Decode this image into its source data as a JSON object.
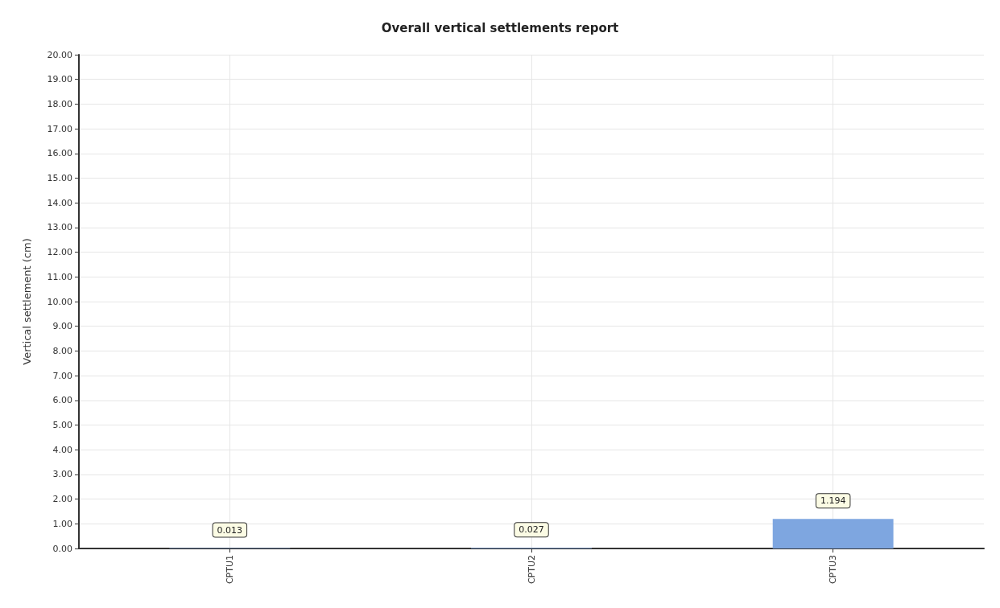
{
  "chart_data": {
    "type": "bar",
    "title": "Overall vertical settlements report",
    "ylabel": "Vertical settlement (cm)",
    "categories": [
      "CPTU1",
      "CPTU2",
      "CPTU3"
    ],
    "values": [
      0.013,
      0.027,
      1.194
    ],
    "color": "#7ea6e0",
    "ylim": [
      0,
      20
    ],
    "yticks": [
      {
        "value": 0,
        "label": "0.00"
      },
      {
        "value": 1,
        "label": "1.00"
      },
      {
        "value": 2,
        "label": "2.00"
      },
      {
        "value": 3,
        "label": "3.00"
      },
      {
        "value": 4,
        "label": "4.00"
      },
      {
        "value": 5,
        "label": "5.00"
      },
      {
        "value": 6,
        "label": "6.00"
      },
      {
        "value": 7,
        "label": "7.00"
      },
      {
        "value": 8,
        "label": "8.00"
      },
      {
        "value": 9,
        "label": "9.00"
      },
      {
        "value": 10,
        "label": "10.00"
      },
      {
        "value": 11,
        "label": "11.00"
      },
      {
        "value": 12,
        "label": "12.00"
      },
      {
        "value": 13,
        "label": "13.00"
      },
      {
        "value": 14,
        "label": "14.00"
      },
      {
        "value": 15,
        "label": "15.00"
      },
      {
        "value": 16,
        "label": "16.00"
      },
      {
        "value": 17,
        "label": "17.00"
      },
      {
        "value": 18,
        "label": "18.00"
      },
      {
        "value": 19,
        "label": "19.00"
      },
      {
        "value": 20,
        "label": "20.00"
      }
    ],
    "grid": true,
    "data_labels": true
  }
}
